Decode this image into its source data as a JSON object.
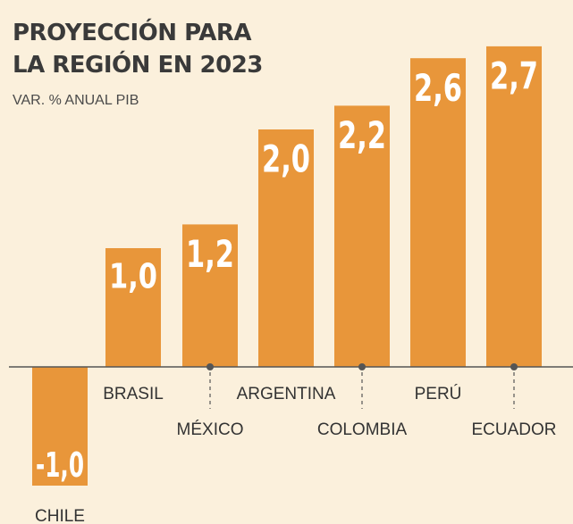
{
  "chart_data": {
    "type": "bar",
    "title_lines": [
      "PROYECCIÓN PARA",
      "LA REGIÓN EN 2023"
    ],
    "subtitle": "VAR. % ANUAL PIB",
    "categories": [
      "CHILE",
      "BRASIL",
      "MÉXICO",
      "ARGENTINA",
      "COLOMBIA",
      "PERÚ",
      "ECUADOR"
    ],
    "values": [
      -1.0,
      1.0,
      1.2,
      2.0,
      2.2,
      2.6,
      2.7
    ],
    "value_labels": [
      "-1,0",
      "1,0",
      "1,2",
      "2,0",
      "2,2",
      "2,6",
      "2,7"
    ],
    "ylim": [
      -1.0,
      2.7
    ],
    "grid": false,
    "legend": "none",
    "colors": {
      "bar": "#e8963a",
      "axis": "#555555",
      "background": "#fbf0dc"
    }
  }
}
